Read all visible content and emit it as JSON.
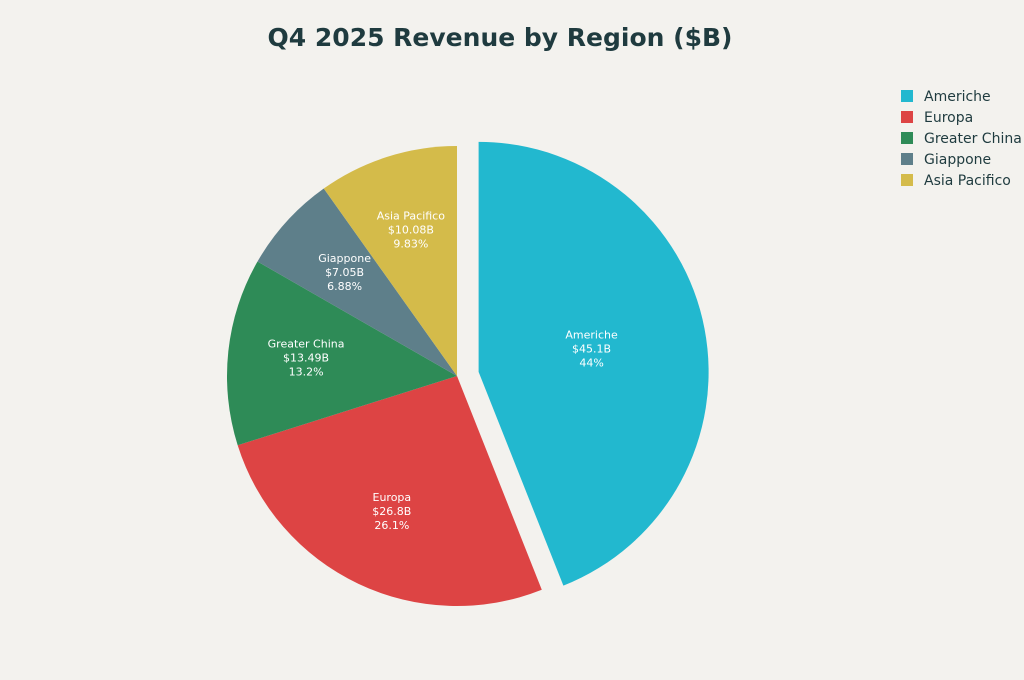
{
  "chart_data": {
    "type": "pie",
    "title": "Q4 2025 Revenue by Region ($B)",
    "slices": [
      {
        "name": "Americhe",
        "value": 45.1,
        "value_label": "$45.1B",
        "percent_label": "44%",
        "color": "#22b8cf",
        "exploded": true
      },
      {
        "name": "Europa",
        "value": 26.8,
        "value_label": "$26.8B",
        "percent_label": "26.1%",
        "color": "#dd4444",
        "exploded": false
      },
      {
        "name": "Greater China",
        "value": 13.49,
        "value_label": "$13.49B",
        "percent_label": "13.2%",
        "color": "#2e8b57",
        "exploded": false
      },
      {
        "name": "Giappone",
        "value": 7.05,
        "value_label": "$7.05B",
        "percent_label": "6.88%",
        "color": "#5e7f8a",
        "exploded": false
      },
      {
        "name": "Asia Pacifico",
        "value": 10.08,
        "value_label": "$10.08B",
        "percent_label": "9.83%",
        "color": "#d4bb4a",
        "exploded": false
      }
    ],
    "legend_position": "top-right",
    "background": "#f3f2ee"
  }
}
